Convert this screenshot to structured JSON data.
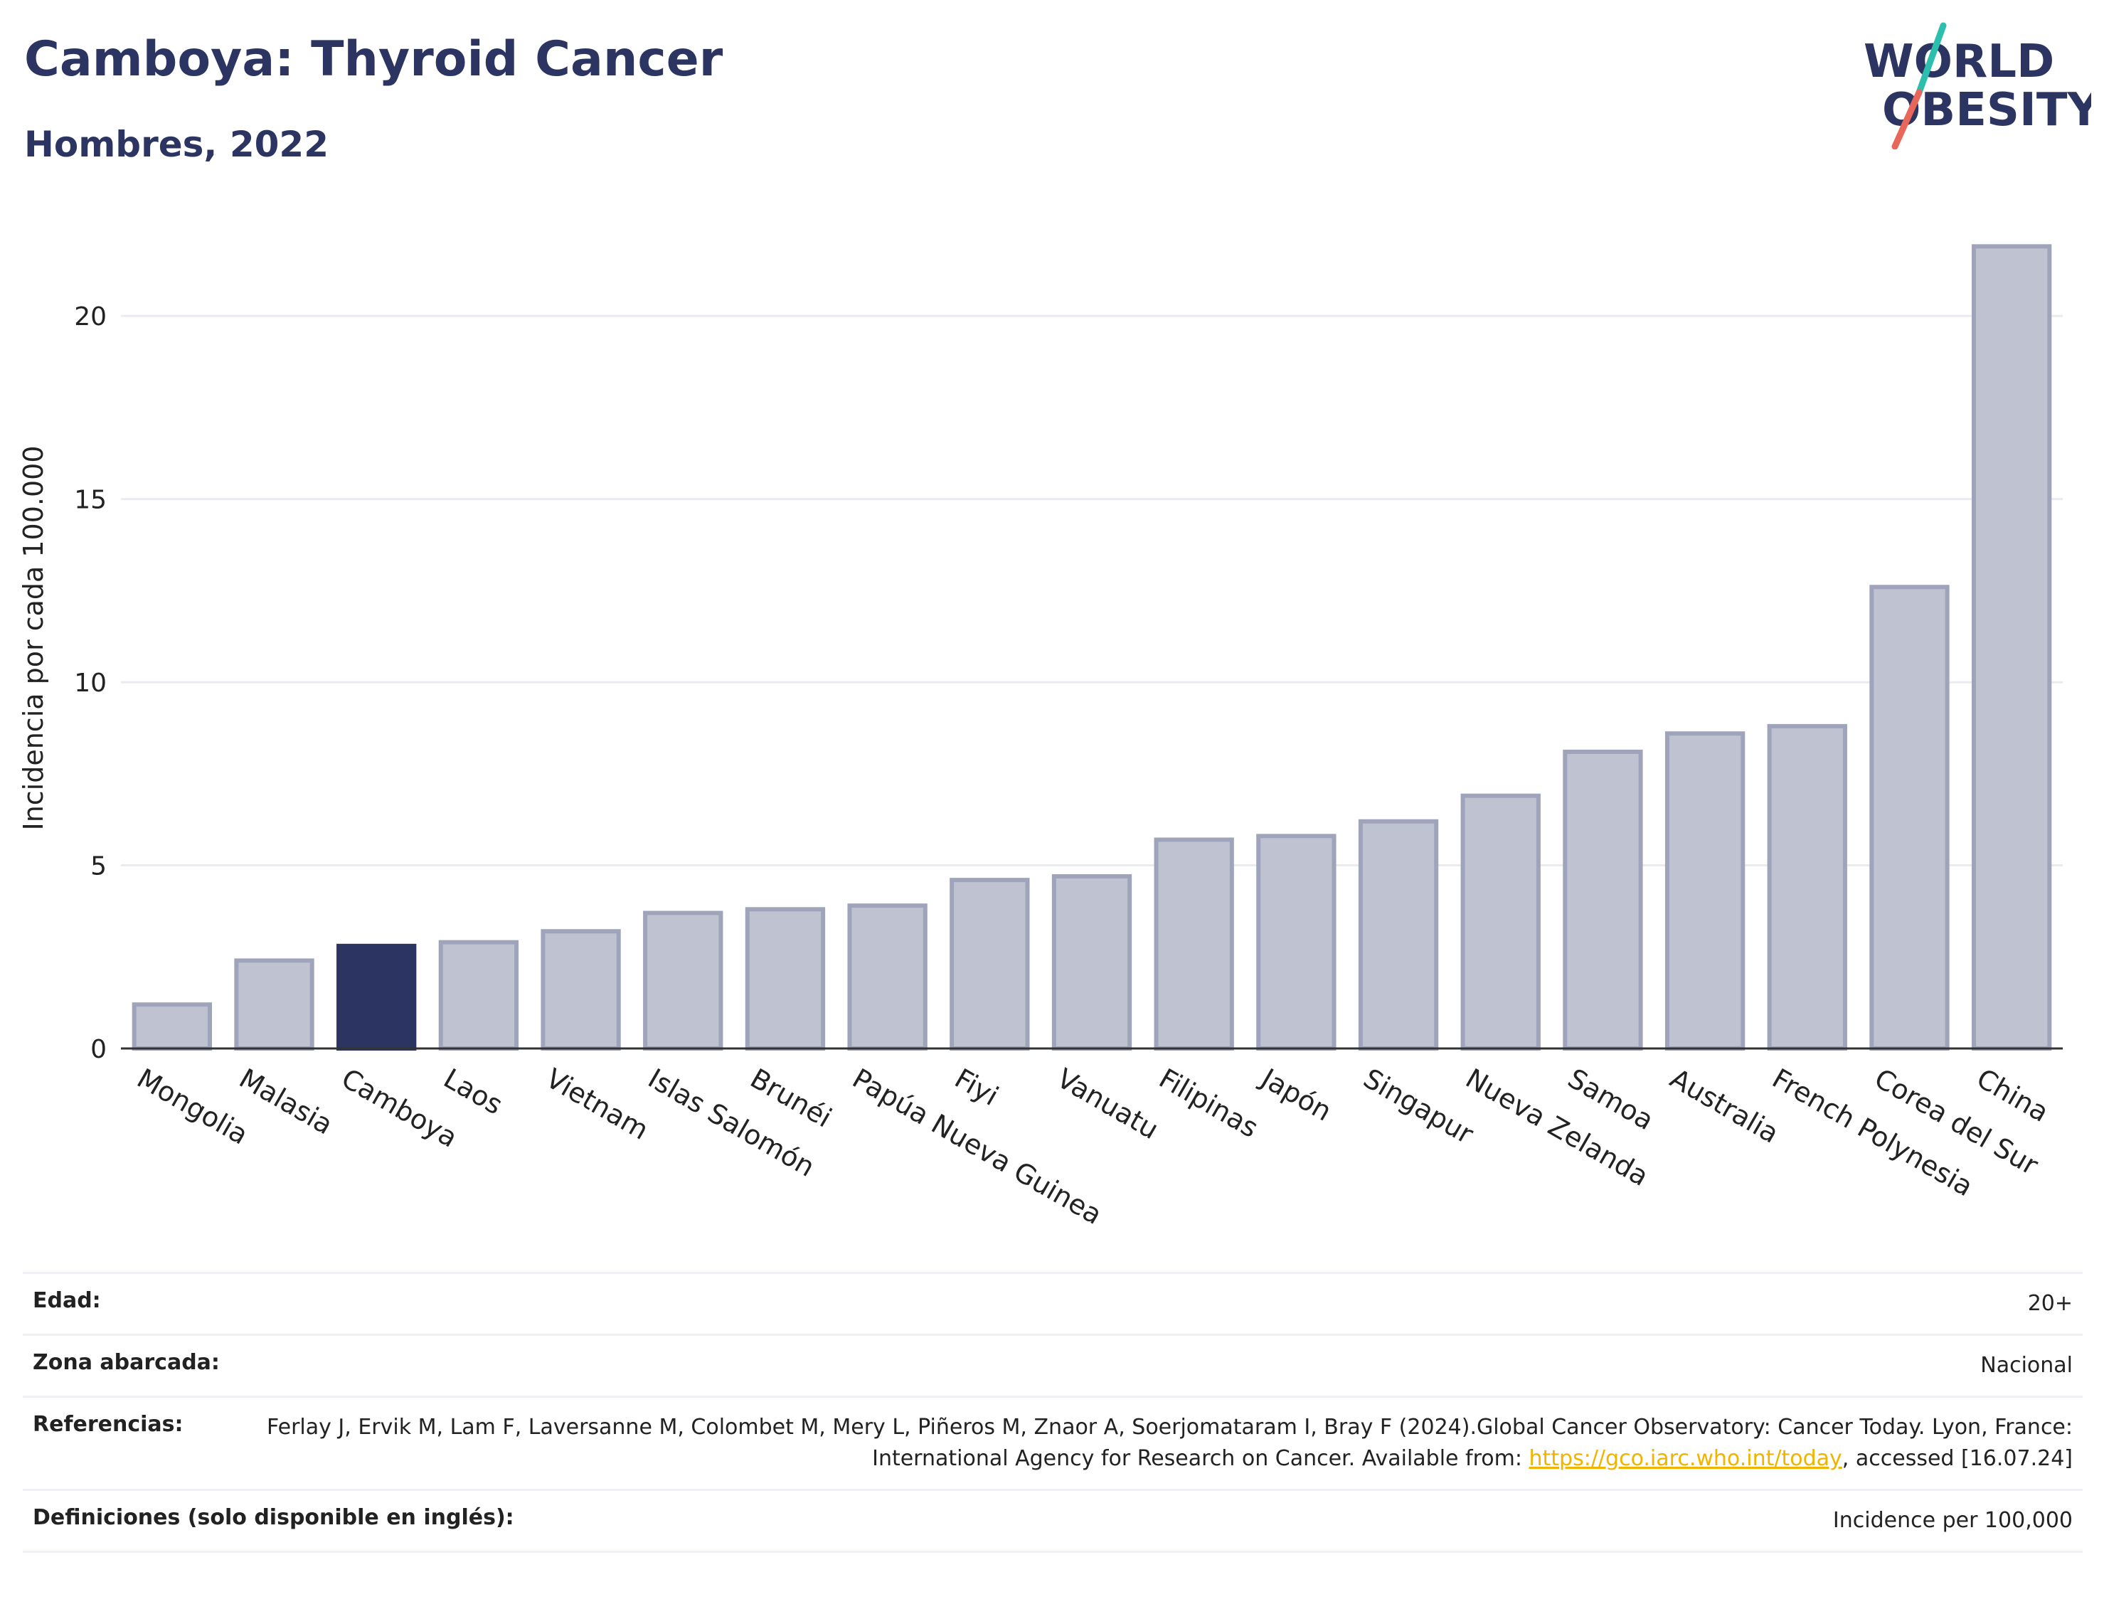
{
  "header": {
    "title": "Camboya: Thyroid Cancer",
    "subtitle": "Hombres, 2022"
  },
  "logo": {
    "line1": "WORLD",
    "line2": "OBESITY",
    "accent_top": "#2dbfae",
    "accent_bottom": "#e8675a",
    "color": "#2c3561"
  },
  "colors": {
    "highlight": "#2c3561",
    "bar_fill": "#bfc3d1",
    "bar_stroke": "#9fa4bb"
  },
  "chart_data": {
    "type": "bar",
    "title": "Camboya: Thyroid Cancer",
    "subtitle": "Hombres, 2022",
    "ylabel": "Incidencia por cada 100.000",
    "xlabel": "",
    "ylim": [
      0,
      22.8
    ],
    "yticks": [
      0,
      5,
      10,
      15,
      20
    ],
    "grid": true,
    "highlight": "Camboya",
    "categories": [
      "Mongolia",
      "Malasia",
      "Camboya",
      "Laos",
      "Vietnam",
      "Islas Salomón",
      "Brunéi",
      "Papúa Nueva Guinea",
      "Fiyi",
      "Vanuatu",
      "Filipinas",
      "Japón",
      "Singapur",
      "Nueva Zelanda",
      "Samoa",
      "Australia",
      "French Polynesia",
      "Corea del Sur",
      "China"
    ],
    "values": [
      1.2,
      2.4,
      2.8,
      2.9,
      3.2,
      3.7,
      3.8,
      3.9,
      4.6,
      4.7,
      5.7,
      5.8,
      6.2,
      6.9,
      8.1,
      8.6,
      8.8,
      12.6,
      21.9
    ]
  },
  "meta": {
    "age_label": "Edad:",
    "age_value": "20+",
    "zone_label": "Zona abarcada:",
    "zone_value": "Nacional",
    "ref_label": "Referencias:",
    "ref_text": "Ferlay J, Ervik M, Lam F, Laversanne M, Colombet M, Mery L, Piñeros M, Znaor A, Soerjomataram I, Bray F (2024).Global Cancer Observatory: Cancer Today. Lyon, France: International Agency for Research on Cancer. Available from:",
    "ref_link": "https://gco.iarc.who.int/today",
    "ref_tail": ", accessed [16.07.24]",
    "def_label": "Definiciones (solo disponible en inglés):",
    "def_value": "Incidence per 100,000"
  }
}
